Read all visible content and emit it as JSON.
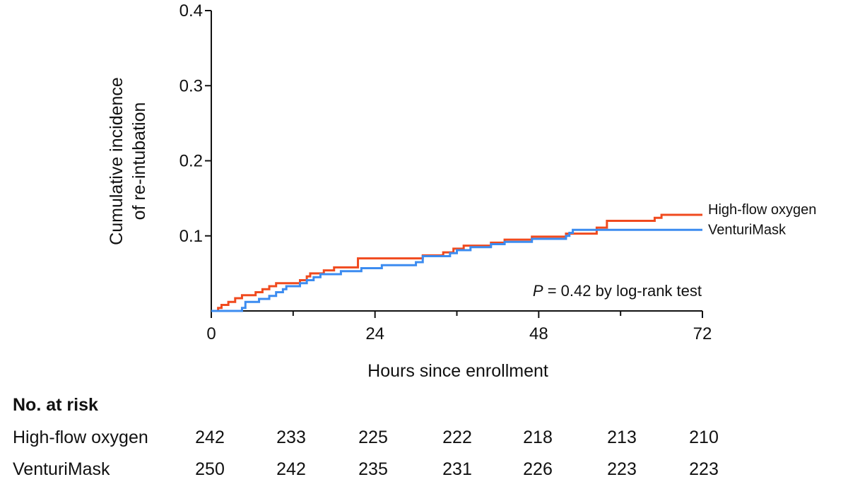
{
  "chart_data": {
    "type": "line",
    "title": "",
    "xlabel": "Hours since enrollment",
    "ylabel": [
      "Cumulative incidence",
      "of re-intubation"
    ],
    "xlim": [
      0,
      72
    ],
    "ylim": [
      0,
      0.4
    ],
    "xticks": [
      0,
      24,
      48,
      72
    ],
    "yticks": [
      0.1,
      0.2,
      0.3,
      0.4
    ],
    "ytick_labels": [
      "0.1",
      "0.2",
      "0.3",
      "0.4"
    ],
    "grid": false,
    "legend_placement": "right end of lines",
    "annotation": {
      "italic": "P",
      "text": " = 0.42 by log-rank test"
    },
    "series": [
      {
        "name": "High-flow oxygen",
        "color": "#F04A1E",
        "step": true,
        "points": [
          [
            0,
            0
          ],
          [
            1,
            0.004
          ],
          [
            1.5,
            0.008
          ],
          [
            2.5,
            0.012
          ],
          [
            3.5,
            0.017
          ],
          [
            4.5,
            0.021
          ],
          [
            6.5,
            0.025
          ],
          [
            7.5,
            0.029
          ],
          [
            8.5,
            0.033
          ],
          [
            9.5,
            0.037
          ],
          [
            13,
            0.041
          ],
          [
            14,
            0.046
          ],
          [
            14.5,
            0.05
          ],
          [
            16.5,
            0.054
          ],
          [
            18,
            0.058
          ],
          [
            21.5,
            0.07
          ],
          [
            30,
            0.07
          ],
          [
            31,
            0.074
          ],
          [
            34,
            0.078
          ],
          [
            35.5,
            0.083
          ],
          [
            37,
            0.087
          ],
          [
            41,
            0.091
          ],
          [
            43,
            0.095
          ],
          [
            47,
            0.099
          ],
          [
            52,
            0.103
          ],
          [
            56.5,
            0.111
          ],
          [
            58,
            0.12
          ],
          [
            65,
            0.124
          ],
          [
            66,
            0.128
          ],
          [
            72,
            0.128
          ]
        ]
      },
      {
        "name": "VenturiMask",
        "color": "#3C8CF0",
        "step": true,
        "points": [
          [
            0,
            0
          ],
          [
            4.5,
            0.004
          ],
          [
            5,
            0.012
          ],
          [
            7,
            0.016
          ],
          [
            8.5,
            0.02
          ],
          [
            9.5,
            0.025
          ],
          [
            10.5,
            0.029
          ],
          [
            11,
            0.033
          ],
          [
            13,
            0.037
          ],
          [
            14,
            0.041
          ],
          [
            15,
            0.045
          ],
          [
            16,
            0.049
          ],
          [
            19,
            0.053
          ],
          [
            22,
            0.057
          ],
          [
            25,
            0.061
          ],
          [
            30,
            0.065
          ],
          [
            31,
            0.073
          ],
          [
            35,
            0.077
          ],
          [
            36,
            0.081
          ],
          [
            38,
            0.085
          ],
          [
            41,
            0.089
          ],
          [
            43,
            0.092
          ],
          [
            47,
            0.096
          ],
          [
            52,
            0.1
          ],
          [
            52.5,
            0.104
          ],
          [
            53,
            0.108
          ],
          [
            72,
            0.108
          ]
        ]
      }
    ]
  },
  "risk_table": {
    "title": "No. at risk",
    "rows": [
      {
        "label": "High-flow oxygen",
        "values": [
          "242",
          "233",
          "225",
          "222",
          "218",
          "213",
          "210"
        ]
      },
      {
        "label": "VenturiMask",
        "values": [
          "250",
          "242",
          "235",
          "231",
          "226",
          "223",
          "223"
        ]
      }
    ]
  }
}
